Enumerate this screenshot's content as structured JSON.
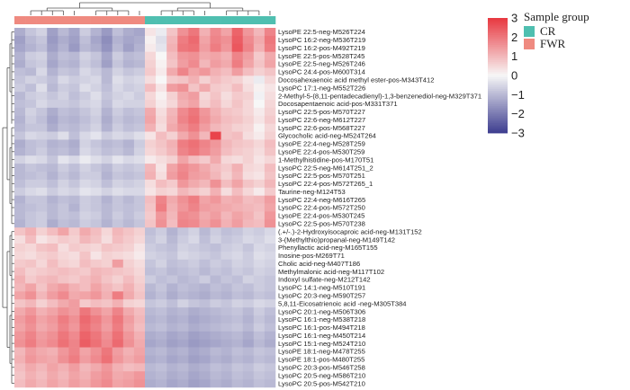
{
  "chart_data": {
    "type": "heatmap",
    "title": "",
    "legend": {
      "title": "Sample group",
      "items": [
        {
          "label": "CR",
          "color": "#4fbfb0"
        },
        {
          "label": "FWR",
          "color": "#ef8a80"
        }
      ]
    },
    "color_scale": {
      "min": -3,
      "max": 3,
      "ticks": [
        "3",
        "2",
        "1",
        "0",
        "−1",
        "−2",
        "−3"
      ],
      "low_color": "#3d3d8f",
      "mid_color": "#f7f7f7",
      "high_color": "#e8373f"
    },
    "column_groups": [
      "FWR",
      "FWR",
      "FWR",
      "FWR",
      "FWR",
      "FWR",
      "FWR",
      "FWR",
      "FWR",
      "FWR",
      "FWR",
      "FWR",
      "CR",
      "CR",
      "CR",
      "CR",
      "CR",
      "CR",
      "CR",
      "CR",
      "CR",
      "CR",
      "CR",
      "CR"
    ],
    "rows": [
      "LysoPE 22:5-neg-M526T224",
      "LysoPC 16:2-neg-M536T219",
      "LysoPC 16:2-pos-M492T219",
      "LysoPE 22:5-pos-M528T245",
      "LysoPE 22:5-neg-M526T246",
      "LysoPC 24:4-pos-M600T314",
      "Docosahexaenoic acid methyl ester-pos-M343T412",
      "LysoPC 17:1-neg-M552T226",
      "2-Methyl-5-(8,11-pentadecadienyl)-1,3-benzenediol-neg-M329T371",
      "Docosapentaenoic acid-pos-M331T371",
      "LysoPC 22:5-pos-M570T227",
      "LysoPC 22:6-neg-M612T227",
      "LysoPC 22:6-pos-M568T227",
      "Glycocholic acid-neg-M524T264",
      "LysoPE 22:4-neg-M528T259",
      "LysoPE 22:4-pos-M530T259",
      "1-Methylhistidine-pos-M170T51",
      "LysoPC 22:5-neg-M614T251_2",
      "LysoPC 22:5-pos-M570T251",
      "LysoPC 22:4-pos-M572T265_1",
      "Taurine-neg-M124T53",
      "LysoPC 22:4-neg-M616T265",
      "LysoPC 22:4-pos-M572T250",
      "LysoPE 22:4-pos-M530T245",
      "LysoPC 22:5-pos-M570T238",
      "(.+/-.)-2-Hydroxyisocaproic acid-neg-M131T152",
      "3-(Methylthio)propanal-neg-M149T142",
      "Phenyllactic acid-neg-M165T155",
      "Inosine-pos-M269T71",
      "Cholic acid-neg-M407T186",
      "Methylmalonic acid-neg-M117T102",
      "Indoxyl sulfate-neg-M212T142",
      "LysoPC 14:1-neg-M510T191",
      "LysoPC 20:3-neg-M590T257",
      "5,8,11-Eicosatrienoic acid -neg-M305T384",
      "LysoPC 20:1-neg-M506T306",
      "LysoPC 16:1-neg-M538T218",
      "LysoPC 16:1-pos-M494T218",
      "LysoPC 16:1-neg-M450T214",
      "LysoPC 15:1-neg-M524T210",
      "LysoPE 18:1-neg-M478T255",
      "LysoPE 18:1-pos-M480T255",
      "LysoPC 20:3-pos-M546T258",
      "LysoPC 20:5-neg-M586T210",
      "LysoPC 20:5-pos-M542T210"
    ],
    "values": [
      [
        -1.2,
        -0.8,
        -0.6,
        -1.4,
        -1.0,
        -1.3,
        -0.7,
        -1.1,
        -1.5,
        -0.9,
        -1.2,
        -1.3,
        0.3,
        -0.2,
        0.8,
        1.6,
        2.0,
        1.1,
        1.7,
        1.3,
        2.3,
        1.5,
        1.0,
        1.8
      ],
      [
        -1.4,
        -1.0,
        -0.8,
        -1.5,
        -1.2,
        -1.4,
        -0.9,
        -1.3,
        -1.7,
        -1.1,
        -1.3,
        -1.2,
        0.1,
        -0.4,
        1.0,
        1.9,
        2.2,
        1.3,
        1.8,
        1.6,
        2.4,
        1.7,
        1.2,
        2.0
      ],
      [
        -1.3,
        -1.1,
        -0.9,
        -1.4,
        -1.1,
        -1.5,
        -1.0,
        -1.2,
        -1.6,
        -1.0,
        -1.4,
        -1.1,
        0.2,
        -0.3,
        1.1,
        2.0,
        2.1,
        1.4,
        1.9,
        1.5,
        2.5,
        1.8,
        1.1,
        1.9
      ],
      [
        -1.1,
        -0.7,
        -0.6,
        -1.2,
        -0.9,
        -1.0,
        -0.6,
        -0.8,
        -1.3,
        -0.7,
        -1.0,
        -0.9,
        0.5,
        0.0,
        0.9,
        1.5,
        1.6,
        1.2,
        1.3,
        1.1,
        1.8,
        1.4,
        0.7,
        1.2
      ],
      [
        -1.2,
        -0.8,
        -0.7,
        -1.3,
        -1.0,
        -1.1,
        -0.7,
        -0.9,
        -1.4,
        -0.8,
        -1.1,
        -1.0,
        0.6,
        0.1,
        0.8,
        1.4,
        1.7,
        1.0,
        1.4,
        1.2,
        1.9,
        1.3,
        0.8,
        1.3
      ],
      [
        -0.9,
        -1.0,
        -0.5,
        -1.1,
        -0.8,
        -0.9,
        -0.5,
        -0.7,
        -1.0,
        -0.6,
        -0.8,
        -0.7,
        0.7,
        0.2,
        1.2,
        1.8,
        1.3,
        1.5,
        1.1,
        0.9,
        1.4,
        0.9,
        0.6,
        0.8
      ],
      [
        -0.8,
        -0.6,
        -0.7,
        -0.9,
        -0.5,
        -0.7,
        -0.6,
        -0.5,
        -1.0,
        -0.4,
        -0.6,
        -0.5,
        0.4,
        0.0,
        0.7,
        0.8,
        1.1,
        0.6,
        0.9,
        0.7,
        0.6,
        0.3,
        -0.2,
        0.5
      ],
      [
        -0.7,
        -0.9,
        -0.4,
        -1.0,
        -0.7,
        -0.8,
        -0.4,
        -0.6,
        -0.9,
        -0.5,
        -0.7,
        -0.6,
        0.9,
        0.3,
        1.4,
        1.6,
        0.8,
        1.2,
        0.7,
        0.6,
        0.9,
        0.4,
        0.1,
        0.3
      ],
      [
        -1.0,
        -0.7,
        -0.6,
        -0.8,
        -0.6,
        -0.9,
        -0.7,
        -0.4,
        -0.8,
        -0.6,
        -0.5,
        -0.7,
        0.5,
        0.1,
        0.6,
        1.2,
        1.4,
        0.5,
        0.8,
        0.4,
        0.7,
        0.6,
        -0.1,
        0.4
      ],
      [
        -0.9,
        -0.8,
        -0.5,
        -0.7,
        -0.7,
        -0.8,
        -0.6,
        -0.5,
        -0.9,
        -0.5,
        -0.6,
        -0.6,
        0.6,
        0.2,
        0.5,
        1.1,
        1.3,
        0.6,
        0.9,
        0.5,
        0.8,
        0.5,
        0.0,
        0.5
      ],
      [
        -1.0,
        -0.6,
        -0.8,
        -1.2,
        -0.9,
        -1.0,
        -0.8,
        -0.6,
        -1.1,
        -0.7,
        -0.9,
        -0.8,
        1.2,
        0.4,
        1.0,
        1.7,
        2.0,
        1.5,
        1.1,
        0.8,
        0.7,
        0.5,
        0.2,
        0.6
      ],
      [
        -1.1,
        -0.7,
        -0.9,
        -1.3,
        -1.0,
        -1.1,
        -0.9,
        -0.7,
        -1.2,
        -0.8,
        -1.0,
        -0.9,
        1.3,
        0.5,
        1.1,
        1.8,
        2.1,
        1.6,
        1.2,
        0.9,
        0.8,
        0.6,
        0.3,
        0.7
      ],
      [
        -1.0,
        -0.8,
        -0.8,
        -1.2,
        -0.9,
        -1.0,
        -0.8,
        -0.6,
        -1.1,
        -0.7,
        -0.9,
        -0.8,
        1.1,
        0.4,
        1.2,
        1.6,
        1.9,
        1.4,
        1.0,
        0.8,
        0.6,
        0.5,
        0.1,
        0.5
      ],
      [
        -0.8,
        -0.5,
        -0.6,
        -0.7,
        -0.4,
        -0.9,
        -0.5,
        -0.3,
        -0.7,
        -0.5,
        -0.6,
        -0.4,
        0.3,
        0.9,
        0.6,
        1.2,
        1.6,
        1.0,
        2.8,
        0.8,
        0.9,
        0.4,
        0.2,
        0.6
      ],
      [
        -1.2,
        -0.9,
        -0.8,
        -1.1,
        -1.0,
        -1.2,
        -0.6,
        -0.8,
        -1.0,
        -0.9,
        -1.1,
        -0.7,
        0.6,
        0.8,
        1.1,
        1.9,
        2.1,
        1.8,
        1.5,
        1.0,
        0.8,
        0.7,
        0.5,
        0.9
      ],
      [
        -1.1,
        -0.9,
        -0.7,
        -1.0,
        -0.9,
        -1.1,
        -0.5,
        -0.7,
        -0.9,
        -0.8,
        -1.0,
        -0.6,
        0.5,
        0.7,
        1.0,
        1.8,
        2.0,
        1.7,
        1.4,
        0.9,
        0.7,
        0.6,
        0.4,
        0.8
      ],
      [
        -0.6,
        -0.4,
        -0.5,
        -0.8,
        -0.3,
        -0.5,
        -0.2,
        -0.4,
        -0.6,
        -0.3,
        -0.5,
        -0.4,
        0.2,
        0.4,
        0.6,
        1.3,
        0.9,
        0.7,
        1.2,
        0.5,
        0.4,
        0.6,
        0.3,
        0.5
      ],
      [
        -1.0,
        -0.8,
        -0.9,
        -1.0,
        -0.7,
        -0.9,
        -0.6,
        -0.8,
        -1.0,
        -0.7,
        -0.8,
        -0.7,
        1.0,
        0.3,
        1.3,
        1.7,
        1.5,
        1.2,
        0.9,
        0.7,
        1.1,
        0.5,
        0.4,
        0.9
      ],
      [
        -1.0,
        -0.9,
        -0.8,
        -1.1,
        -0.8,
        -1.0,
        -0.7,
        -0.7,
        -1.1,
        -0.8,
        -0.9,
        -0.8,
        1.1,
        0.4,
        1.4,
        1.8,
        1.4,
        1.3,
        1.0,
        0.6,
        1.0,
        0.4,
        0.3,
        0.8
      ],
      [
        -0.9,
        -0.7,
        -0.7,
        -0.9,
        -0.6,
        -0.8,
        -0.5,
        -0.6,
        -0.9,
        -0.6,
        -0.7,
        -0.6,
        0.4,
        0.9,
        0.7,
        1.5,
        1.2,
        1.0,
        1.6,
        0.9,
        1.3,
        0.8,
        0.6,
        1.0
      ],
      [
        -0.7,
        -0.5,
        -0.4,
        -0.7,
        -0.5,
        -0.6,
        -0.3,
        -0.4,
        -0.6,
        -0.4,
        -0.5,
        -0.5,
        0.3,
        0.6,
        0.5,
        1.0,
        0.8,
        0.6,
        1.1,
        0.4,
        0.9,
        0.5,
        0.2,
        0.7
      ],
      [
        -1.1,
        -0.8,
        -0.8,
        -1.1,
        -0.9,
        -1.0,
        -0.7,
        -0.8,
        -1.1,
        -0.8,
        -1.0,
        -0.8,
        0.9,
        1.8,
        1.2,
        1.6,
        1.9,
        1.3,
        1.5,
        1.1,
        1.2,
        0.9,
        1.0,
        1.4
      ],
      [
        -1.0,
        -0.9,
        -0.8,
        -1.0,
        -0.8,
        -1.1,
        -0.7,
        -0.8,
        -1.0,
        -0.8,
        -0.9,
        -0.8,
        0.8,
        1.9,
        1.1,
        1.5,
        1.8,
        1.4,
        1.3,
        1.2,
        1.1,
        1.0,
        0.9,
        1.3
      ],
      [
        -1.0,
        -0.8,
        -0.7,
        -1.0,
        -0.8,
        -0.9,
        -0.6,
        -0.7,
        -1.0,
        -0.7,
        -0.9,
        -0.7,
        0.7,
        1.5,
        1.0,
        1.7,
        1.6,
        1.2,
        1.4,
        1.0,
        1.3,
        1.1,
        0.8,
        1.5
      ],
      [
        -1.1,
        -0.8,
        -0.7,
        -1.2,
        -0.9,
        -1.0,
        -0.7,
        -0.8,
        -1.1,
        -0.8,
        -1.0,
        -0.8,
        0.8,
        1.6,
        0.9,
        1.8,
        1.7,
        1.3,
        1.6,
        1.1,
        1.4,
        1.0,
        0.9,
        1.6
      ],
      [
        0.8,
        1.1,
        0.6,
        0.9,
        1.3,
        0.7,
        1.2,
        0.9,
        0.5,
        1.0,
        0.8,
        0.6,
        -0.9,
        -0.7,
        -1.1,
        -0.8,
        -0.6,
        -1.0,
        -0.7,
        -0.9,
        -0.8,
        -0.6,
        -0.7,
        -0.5
      ],
      [
        0.4,
        0.9,
        0.3,
        0.5,
        0.7,
        0.6,
        1.0,
        0.8,
        0.4,
        0.9,
        0.7,
        0.5,
        -0.8,
        -0.6,
        -1.0,
        -0.7,
        -0.5,
        -0.9,
        -0.6,
        -0.8,
        -0.7,
        -0.5,
        -0.6,
        -0.4
      ],
      [
        0.6,
        0.5,
        0.8,
        0.9,
        0.4,
        0.7,
        0.6,
        0.5,
        0.8,
        0.7,
        0.6,
        0.3,
        -0.7,
        -0.8,
        -0.9,
        -0.6,
        -0.7,
        -0.8,
        -0.9,
        -0.7,
        -0.6,
        -0.8,
        -0.5,
        -0.6
      ],
      [
        0.5,
        0.4,
        0.6,
        0.7,
        0.5,
        0.4,
        0.8,
        0.3,
        0.6,
        0.5,
        0.4,
        0.2,
        -0.6,
        -0.7,
        -0.8,
        -0.5,
        -0.6,
        -0.7,
        -0.8,
        -0.6,
        -0.5,
        -0.7,
        -0.4,
        -0.5
      ],
      [
        0.7,
        0.8,
        0.5,
        0.9,
        0.6,
        0.5,
        0.9,
        0.7,
        0.6,
        1.4,
        0.6,
        0.4,
        -0.8,
        -0.6,
        -0.9,
        -0.8,
        -0.7,
        -0.9,
        -0.7,
        -0.8,
        -0.6,
        -0.7,
        -0.5,
        -0.6
      ],
      [
        0.9,
        0.6,
        0.7,
        0.8,
        0.9,
        0.8,
        0.7,
        1.0,
        0.9,
        0.8,
        0.7,
        0.5,
        -0.9,
        -0.8,
        -1.0,
        -0.9,
        -0.8,
        -1.0,
        -0.8,
        -0.9,
        -0.7,
        -0.8,
        -0.6,
        -0.7
      ],
      [
        1.1,
        0.7,
        0.9,
        1.0,
        0.8,
        0.7,
        0.9,
        1.1,
        0.8,
        0.6,
        0.9,
        0.6,
        -0.7,
        -0.9,
        -0.8,
        -1.0,
        -0.9,
        -0.7,
        -1.0,
        -0.8,
        -0.9,
        -0.6,
        -0.7,
        -0.8
      ],
      [
        1.0,
        1.3,
        0.8,
        1.2,
        1.4,
        1.1,
        0.9,
        1.3,
        1.0,
        0.8,
        1.1,
        0.7,
        -1.0,
        -0.8,
        -1.1,
        -0.9,
        -1.0,
        -1.1,
        -0.9,
        -1.0,
        -0.8,
        -0.9,
        -0.7,
        -0.8
      ],
      [
        1.3,
        1.6,
        1.0,
        1.4,
        1.7,
        1.2,
        1.3,
        1.5,
        1.1,
        1.9,
        1.2,
        0.8,
        -1.1,
        -0.9,
        -1.2,
        -1.0,
        -1.1,
        -1.2,
        -1.0,
        -1.1,
        -0.9,
        -1.0,
        -0.8,
        -0.9
      ],
      [
        0.8,
        1.0,
        0.6,
        0.9,
        1.2,
        1.4,
        0.7,
        0.9,
        0.8,
        1.1,
        0.6,
        0.5,
        -0.8,
        -0.7,
        -0.9,
        -0.6,
        -0.8,
        -0.9,
        -0.7,
        -0.8,
        -0.6,
        -0.7,
        -0.5,
        -0.6
      ],
      [
        1.2,
        1.5,
        1.1,
        1.3,
        1.6,
        1.4,
        2.0,
        1.6,
        1.3,
        1.8,
        1.2,
        0.9,
        -1.0,
        -0.9,
        -1.1,
        -1.0,
        -1.2,
        -1.1,
        -1.0,
        -0.9,
        -0.8,
        -1.0,
        -0.7,
        -0.9
      ],
      [
        1.4,
        1.7,
        1.3,
        1.5,
        1.9,
        1.6,
        2.2,
        1.9,
        1.5,
        2.0,
        1.4,
        1.0,
        -1.1,
        -1.0,
        -1.2,
        -1.1,
        -1.3,
        -1.2,
        -1.1,
        -1.0,
        -0.9,
        -1.1,
        -0.8,
        -1.0
      ],
      [
        1.3,
        1.6,
        1.2,
        1.4,
        1.8,
        1.5,
        2.1,
        1.8,
        1.4,
        1.9,
        1.3,
        0.9,
        -1.0,
        -0.9,
        -1.1,
        -1.0,
        -1.2,
        -1.1,
        -1.0,
        -0.9,
        -0.8,
        -1.0,
        -0.7,
        -0.9
      ],
      [
        1.5,
        1.8,
        1.4,
        1.6,
        2.0,
        1.7,
        2.3,
        2.0,
        1.6,
        2.1,
        1.5,
        1.1,
        -1.2,
        -1.1,
        -1.3,
        -1.2,
        -1.4,
        -1.3,
        -1.2,
        -1.1,
        -1.0,
        -1.2,
        -0.9,
        -1.1
      ],
      [
        1.6,
        1.9,
        1.5,
        1.7,
        2.1,
        1.8,
        2.4,
        2.1,
        1.7,
        2.2,
        1.6,
        1.2,
        -1.3,
        -1.2,
        -1.4,
        -1.3,
        -1.5,
        -1.4,
        -1.3,
        -1.2,
        -1.1,
        -1.3,
        -1.0,
        -1.2
      ],
      [
        1.0,
        1.4,
        1.2,
        1.1,
        1.5,
        1.8,
        1.3,
        1.6,
        2.0,
        1.4,
        1.1,
        1.3,
        -1.1,
        -1.0,
        -1.2,
        -1.1,
        -1.3,
        -1.2,
        -1.0,
        -1.1,
        -0.9,
        -1.0,
        -0.8,
        -0.9
      ],
      [
        1.1,
        1.5,
        1.3,
        1.2,
        1.6,
        1.9,
        1.4,
        1.7,
        2.1,
        1.5,
        1.2,
        1.4,
        -1.2,
        -1.1,
        -1.3,
        -1.2,
        -1.4,
        -1.3,
        -1.1,
        -1.2,
        -1.0,
        -1.1,
        -0.9,
        -1.0
      ],
      [
        0.9,
        1.2,
        1.0,
        1.3,
        1.1,
        1.4,
        1.0,
        1.2,
        1.5,
        1.1,
        0.9,
        1.0,
        -1.0,
        -0.9,
        -1.1,
        -1.0,
        -1.2,
        -1.1,
        -0.9,
        -1.0,
        -0.8,
        -0.9,
        -0.7,
        -0.8
      ],
      [
        0.8,
        1.1,
        0.9,
        1.2,
        1.0,
        1.3,
        1.1,
        1.4,
        1.6,
        1.2,
        1.3,
        1.5,
        -1.1,
        -1.0,
        -1.2,
        -1.1,
        -1.3,
        -1.2,
        -1.0,
        -1.1,
        -0.9,
        -1.0,
        -0.8,
        -0.9
      ],
      [
        0.9,
        1.2,
        1.0,
        1.3,
        1.1,
        1.4,
        1.2,
        1.5,
        1.7,
        1.3,
        1.4,
        1.6,
        -1.2,
        -1.1,
        -1.3,
        -1.2,
        -1.4,
        -1.3,
        -1.1,
        -1.2,
        -1.0,
        -1.1,
        -0.9,
        -1.0
      ]
    ]
  }
}
